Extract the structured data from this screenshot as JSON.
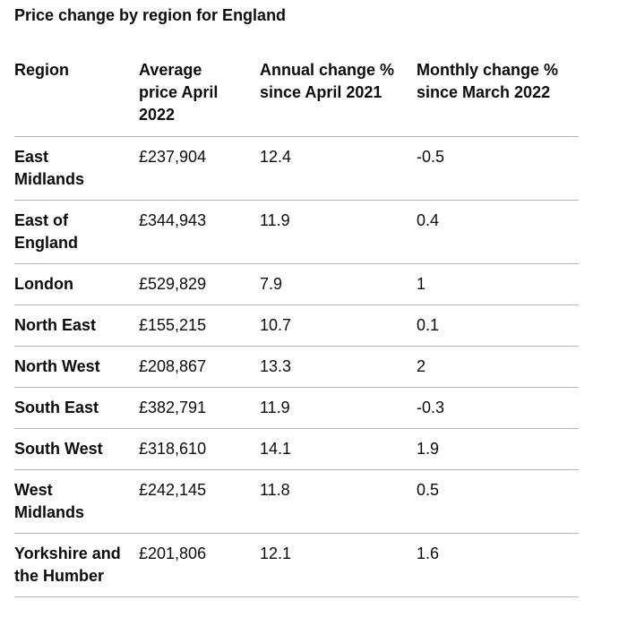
{
  "caption": "Price change by region for England",
  "headers": [
    "Region",
    "Average price April 2022",
    "Annual change % since April 2021",
    "Monthly change % since March 2022"
  ],
  "rows": [
    {
      "region": "East Midlands",
      "price": "£237,904",
      "annual": "12.4",
      "monthly": "-0.5"
    },
    {
      "region": "East of England",
      "price": "£344,943",
      "annual": "11.9",
      "monthly": "0.4"
    },
    {
      "region": "London",
      "price": "£529,829",
      "annual": "7.9",
      "monthly": "1"
    },
    {
      "region": "North East",
      "price": "£155,215",
      "annual": "10.7",
      "monthly": "0.1"
    },
    {
      "region": "North West",
      "price": "£208,867",
      "annual": "13.3",
      "monthly": "2"
    },
    {
      "region": "South East",
      "price": "£382,791",
      "annual": "11.9",
      "monthly": "-0.3"
    },
    {
      "region": "South West",
      "price": "£318,610",
      "annual": "14.1",
      "monthly": "1.9"
    },
    {
      "region": "West Midlands",
      "price": "£242,145",
      "annual": "11.8",
      "monthly": "0.5"
    },
    {
      "region": "Yorkshire and the Humber",
      "price": "£201,806",
      "annual": "12.1",
      "monthly": "1.6"
    }
  ]
}
